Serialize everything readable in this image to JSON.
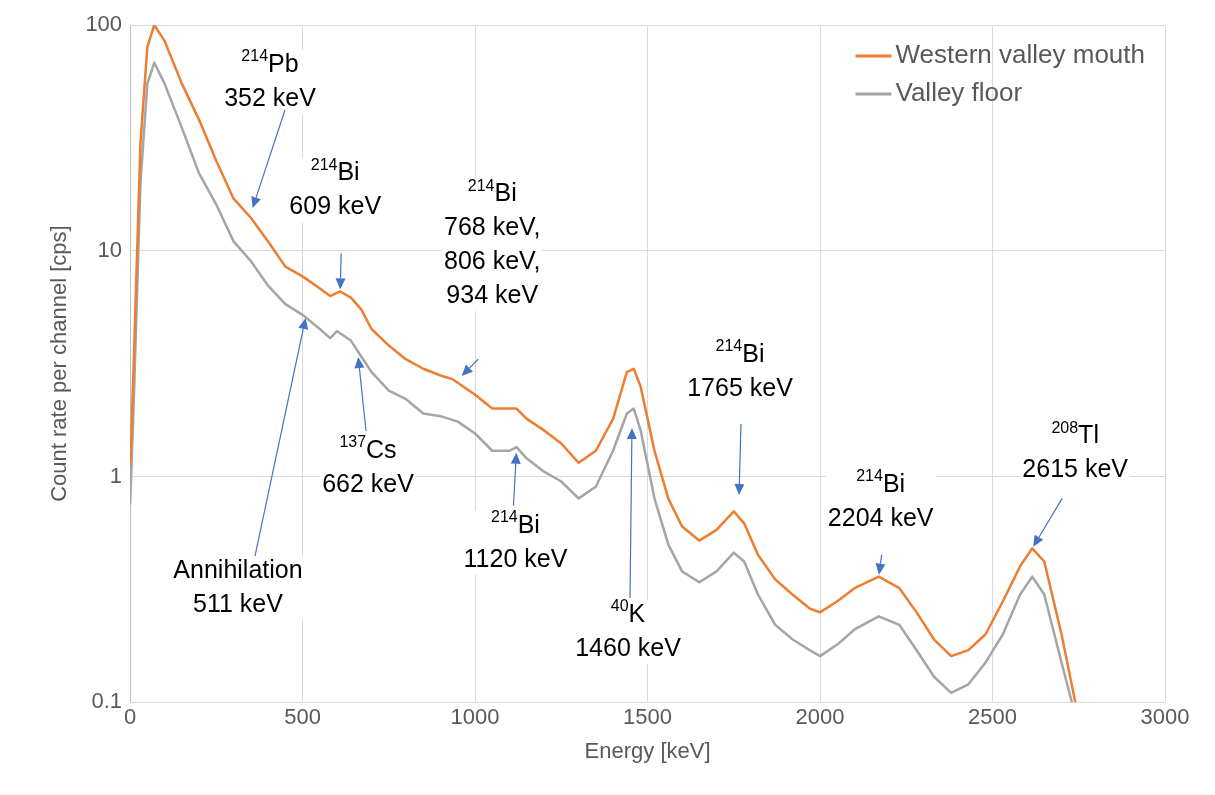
{
  "chart_data": {
    "type": "line",
    "xlabel": "Energy [keV]",
    "ylabel": "Count rate per channel [cps]",
    "xlim": [
      0,
      3000
    ],
    "xticks": [
      0,
      500,
      1000,
      1500,
      2000,
      2500,
      3000
    ],
    "ylim": [
      0.1,
      100
    ],
    "yticks": [
      0.1,
      1,
      10,
      100
    ],
    "log": "y",
    "grid": true,
    "legend": "top right",
    "marker": "none",
    "line_style": "solid",
    "series": [
      {
        "name": "Western valley mouth",
        "color": "#ed7d31",
        "x": [
          0,
          10,
          30,
          50,
          70,
          100,
          150,
          200,
          250,
          300,
          350,
          400,
          450,
          500,
          550,
          580,
          609,
          640,
          670,
          700,
          750,
          800,
          850,
          900,
          934,
          1000,
          1050,
          1100,
          1120,
          1150,
          1200,
          1250,
          1300,
          1350,
          1400,
          1440,
          1460,
          1480,
          1520,
          1560,
          1600,
          1650,
          1700,
          1750,
          1780,
          1820,
          1870,
          1920,
          1970,
          2000,
          2050,
          2100,
          2170,
          2230,
          2280,
          2330,
          2380,
          2430,
          2480,
          2530,
          2580,
          2615,
          2650,
          2700,
          2740
        ],
        "values": [
          1.1,
          3,
          30,
          80,
          100,
          85,
          55,
          38,
          25,
          17,
          14,
          11,
          8.5,
          7.7,
          6.8,
          6.3,
          6.6,
          6.2,
          5.5,
          4.5,
          3.8,
          3.3,
          3.0,
          2.8,
          2.7,
          2.3,
          2.0,
          2.0,
          2.0,
          1.8,
          1.6,
          1.4,
          1.15,
          1.3,
          1.8,
          2.9,
          3.0,
          2.5,
          1.3,
          0.8,
          0.6,
          0.52,
          0.58,
          0.7,
          0.62,
          0.45,
          0.35,
          0.3,
          0.26,
          0.25,
          0.28,
          0.32,
          0.36,
          0.32,
          0.25,
          0.19,
          0.16,
          0.17,
          0.2,
          0.28,
          0.4,
          0.48,
          0.42,
          0.2,
          0.1
        ]
      },
      {
        "name": "Valley floor",
        "color": "#a5a5a5",
        "x": [
          0,
          10,
          30,
          50,
          70,
          100,
          150,
          200,
          250,
          300,
          350,
          400,
          450,
          500,
          550,
          580,
          600,
          640,
          670,
          700,
          750,
          800,
          850,
          900,
          950,
          1000,
          1050,
          1100,
          1120,
          1150,
          1200,
          1250,
          1300,
          1350,
          1400,
          1440,
          1460,
          1480,
          1520,
          1560,
          1600,
          1650,
          1700,
          1750,
          1780,
          1820,
          1870,
          1920,
          1970,
          2000,
          2050,
          2100,
          2170,
          2230,
          2280,
          2330,
          2380,
          2430,
          2480,
          2530,
          2580,
          2615,
          2650,
          2700,
          2730
        ],
        "values": [
          0.75,
          2,
          20,
          55,
          68,
          55,
          35,
          22,
          16,
          11,
          9,
          7,
          5.8,
          5.2,
          4.5,
          4.1,
          4.4,
          4.0,
          3.4,
          2.9,
          2.4,
          2.2,
          1.9,
          1.85,
          1.75,
          1.55,
          1.3,
          1.3,
          1.35,
          1.2,
          1.05,
          0.95,
          0.8,
          0.9,
          1.3,
          1.9,
          2.0,
          1.6,
          0.8,
          0.5,
          0.38,
          0.34,
          0.38,
          0.46,
          0.42,
          0.3,
          0.22,
          0.19,
          0.17,
          0.16,
          0.18,
          0.21,
          0.24,
          0.22,
          0.17,
          0.13,
          0.11,
          0.12,
          0.15,
          0.2,
          0.3,
          0.36,
          0.3,
          0.15,
          0.1
        ]
      }
    ],
    "annotations": [
      "$^{214}$Pb\n352 keV",
      {
        "text": "$^{214}$Bi\n609 keV",
        "x": 609,
        "y": 6.6
      },
      {
        "text": "$^{214}$Bi\n768 keV,\n806 keV,\n934 keV",
        "x": 957,
        "y": 2.75
      },
      "$^{137}$Cs\n662 keV",
      "Annihilation\n511 keV",
      {
        "text": "$^{214}$Bi\n1120 keV",
        "x": 1120,
        "y": 1.3
      },
      "$^{40}$K\n1460 keV",
      "$^{214}$Bi\n1765 keV",
      {
        "text": "$^{214}$Bi\n2204 keV",
        "x": 2170,
        "y": 0.36
      },
      {
        "text": "$^{208}$Tl\n2615 keV",
        "x": 2615,
        "y": 0.48
      }
    ]
  }
}
